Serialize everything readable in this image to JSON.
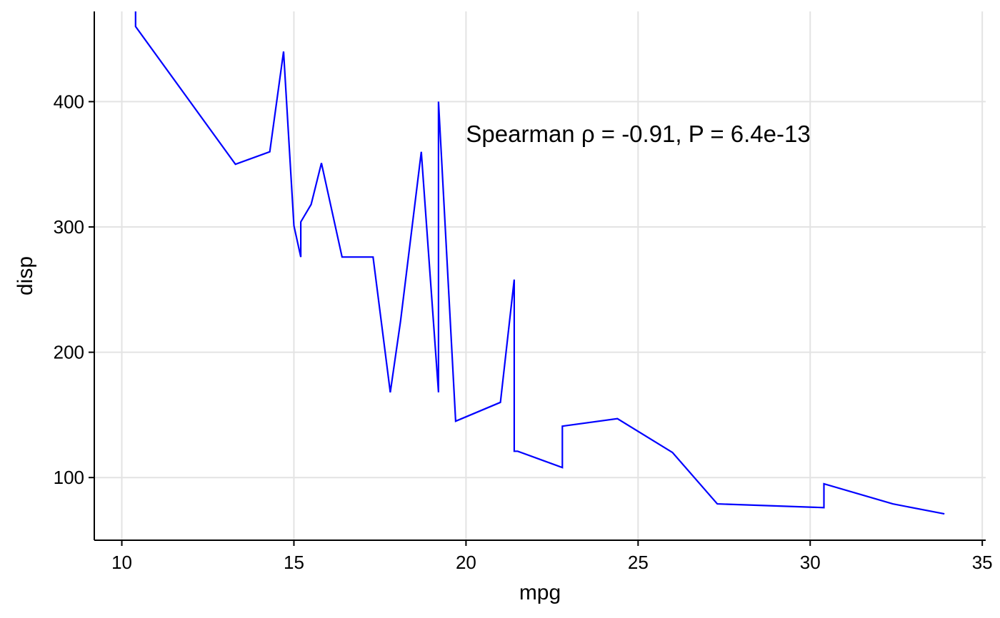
{
  "chart_data": {
    "type": "line",
    "title": "",
    "xlabel": "mpg",
    "ylabel": "disp",
    "xlim": [
      9.2,
      35.1
    ],
    "ylim": [
      50,
      472
    ],
    "xticks": [
      10,
      15,
      20,
      25,
      30,
      35
    ],
    "yticks": [
      100,
      200,
      300,
      400
    ],
    "grid": true,
    "legend": "none",
    "annotation": "Spearman ρ = -0.91, P = 6.4e-13",
    "colors": {
      "series": "#0000ff",
      "grid": "#e3e3e3",
      "axis": "#000000"
    },
    "series": [
      {
        "x": [
          10.4,
          10.4,
          13.3,
          14.3,
          14.7,
          15.0,
          15.2,
          15.2,
          15.5,
          15.8,
          16.4,
          16.4,
          17.3,
          17.8,
          18.1,
          18.7,
          19.2,
          19.2,
          19.7,
          21.0,
          21.0,
          21.4,
          21.4,
          21.5,
          22.8,
          22.8,
          24.4,
          26.0,
          27.3,
          30.4,
          30.4,
          32.4,
          33.9
        ],
        "y": [
          472,
          460,
          350,
          360,
          440,
          301,
          276,
          304,
          318,
          351,
          276,
          276,
          276,
          168,
          225,
          360,
          168,
          400,
          145,
          160,
          160,
          258,
          121,
          121,
          108,
          141,
          147,
          120,
          79,
          76,
          95,
          79,
          71
        ]
      }
    ]
  }
}
